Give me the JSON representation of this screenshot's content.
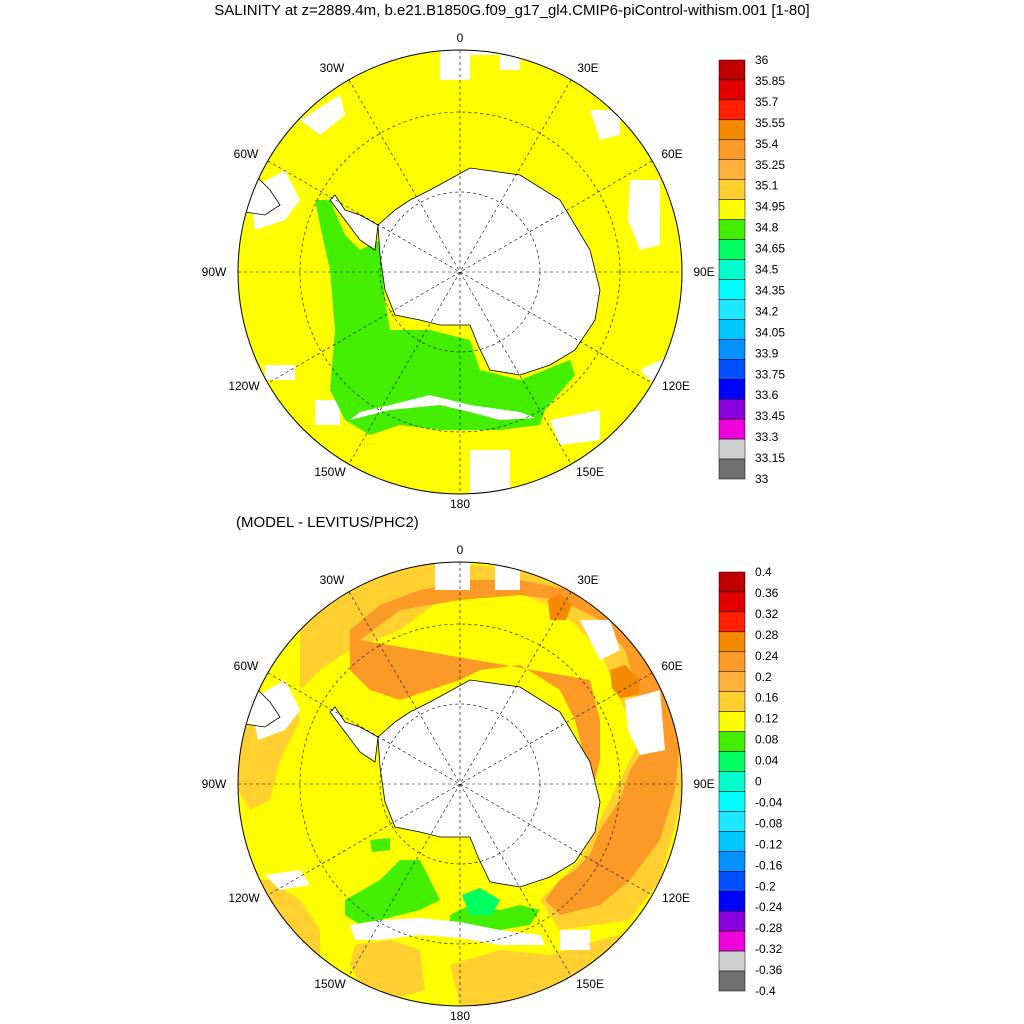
{
  "title": "SALINITY at z=2889.4m, b.e21.B1850G.f09_g17_gl4.CMIP6-piControl-withism.001 [1-80]",
  "subtitle": "(MODEL - LEVITUS/PHC2)",
  "longitude_labels": [
    "0",
    "30E",
    "60E",
    "90E",
    "120E",
    "150E",
    "180",
    "150W",
    "120W",
    "90W",
    "60W",
    "30W"
  ],
  "colors": {
    "land": "#ffffff",
    "coast": "#000000",
    "grid": "#000000"
  },
  "top_colorbar": {
    "labels": [
      "36",
      "35.85",
      "35.7",
      "35.55",
      "35.4",
      "35.25",
      "35.1",
      "34.95",
      "34.8",
      "34.65",
      "34.5",
      "34.35",
      "34.2",
      "34.05",
      "33.9",
      "33.75",
      "33.6",
      "33.45",
      "33.3",
      "33.15",
      "33"
    ],
    "colors": [
      "#c00000",
      "#e00000",
      "#ff2000",
      "#f58a00",
      "#fb9a26",
      "#fdb03c",
      "#ffd030",
      "#ffff00",
      "#44ee00",
      "#00ff60",
      "#00ffcc",
      "#00ffff",
      "#1ee8ff",
      "#00c8ff",
      "#0090ff",
      "#0050ff",
      "#0000ff",
      "#8800dd",
      "#ee00dd",
      "#d0d0d0",
      "#707070"
    ]
  },
  "bottom_colorbar": {
    "labels": [
      "0.4",
      "0.36",
      "0.32",
      "0.28",
      "0.24",
      "0.2",
      "0.16",
      "0.12",
      "0.08",
      "0.04",
      "0",
      "-0.04",
      "-0.08",
      "-0.12",
      "-0.16",
      "-0.2",
      "-0.24",
      "-0.28",
      "-0.32",
      "-0.36",
      "-0.4"
    ],
    "colors": [
      "#c00000",
      "#e00000",
      "#ff2000",
      "#f58a00",
      "#fb9a26",
      "#fdb03c",
      "#ffd030",
      "#ffff00",
      "#44ee00",
      "#00ff60",
      "#00ffcc",
      "#00ffff",
      "#1ee8ff",
      "#00c8ff",
      "#0090ff",
      "#0050ff",
      "#0000ff",
      "#8800dd",
      "#ee00dd",
      "#d0d0d0",
      "#707070"
    ]
  }
}
